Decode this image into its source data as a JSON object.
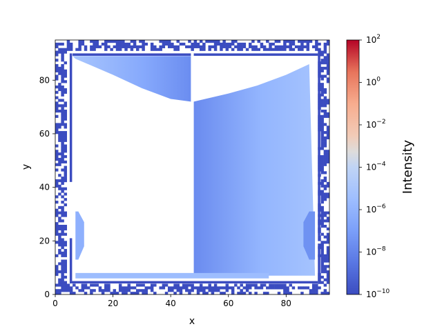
{
  "chart_data": {
    "type": "heatmap",
    "title": "",
    "xlabel": "x",
    "ylabel": "y",
    "xlim": [
      0,
      95
    ],
    "ylim": [
      0,
      95
    ],
    "x_ticks": [
      0,
      20,
      40,
      60,
      80
    ],
    "y_ticks": [
      0,
      20,
      40,
      60,
      80
    ],
    "grid": false,
    "colormap": "coolwarm",
    "colors": {
      "low": "#3b4cc0",
      "mid": "#dddcdc",
      "high": "#b40426",
      "border": "#3b4cc0"
    },
    "colorbar": {
      "label": "Intensity",
      "scale": "log",
      "range": [
        1e-10,
        100
      ],
      "tick_exponents": [
        -10,
        -8,
        -6,
        -4,
        -2,
        0,
        2
      ]
    },
    "regions": [
      {
        "name": "upper-left-wedge",
        "x_range": [
          6,
          47
        ],
        "top_y": 89,
        "bottom_edge": [
          [
            7,
            88
          ],
          [
            20,
            82
          ],
          [
            30,
            77
          ],
          [
            40,
            73
          ],
          [
            47,
            72
          ]
        ],
        "intensity_range": [
          1e-08,
          1e-06
        ]
      },
      {
        "name": "right-block",
        "x_range": [
          48,
          90
        ],
        "top_edge": [
          [
            48,
            72
          ],
          [
            60,
            75
          ],
          [
            70,
            78
          ],
          [
            80,
            82
          ],
          [
            88,
            86
          ]
        ],
        "bottom_y": 7,
        "intensity_range": [
          1e-08,
          1e-06
        ]
      },
      {
        "name": "left-small-lens",
        "x_range": [
          7,
          10
        ],
        "y_range": [
          13,
          31
        ],
        "intensity_range": [
          1e-08,
          1e-06
        ]
      },
      {
        "name": "right-small-lens",
        "x_range": [
          86,
          90
        ],
        "y_range": [
          13,
          31
        ],
        "intensity_range": [
          1e-08,
          1e-06
        ]
      },
      {
        "name": "bottom-strip",
        "x_range": [
          7,
          74
        ],
        "y_range": [
          6,
          8
        ],
        "intensity_range": [
          1e-09,
          1e-07
        ]
      }
    ]
  }
}
